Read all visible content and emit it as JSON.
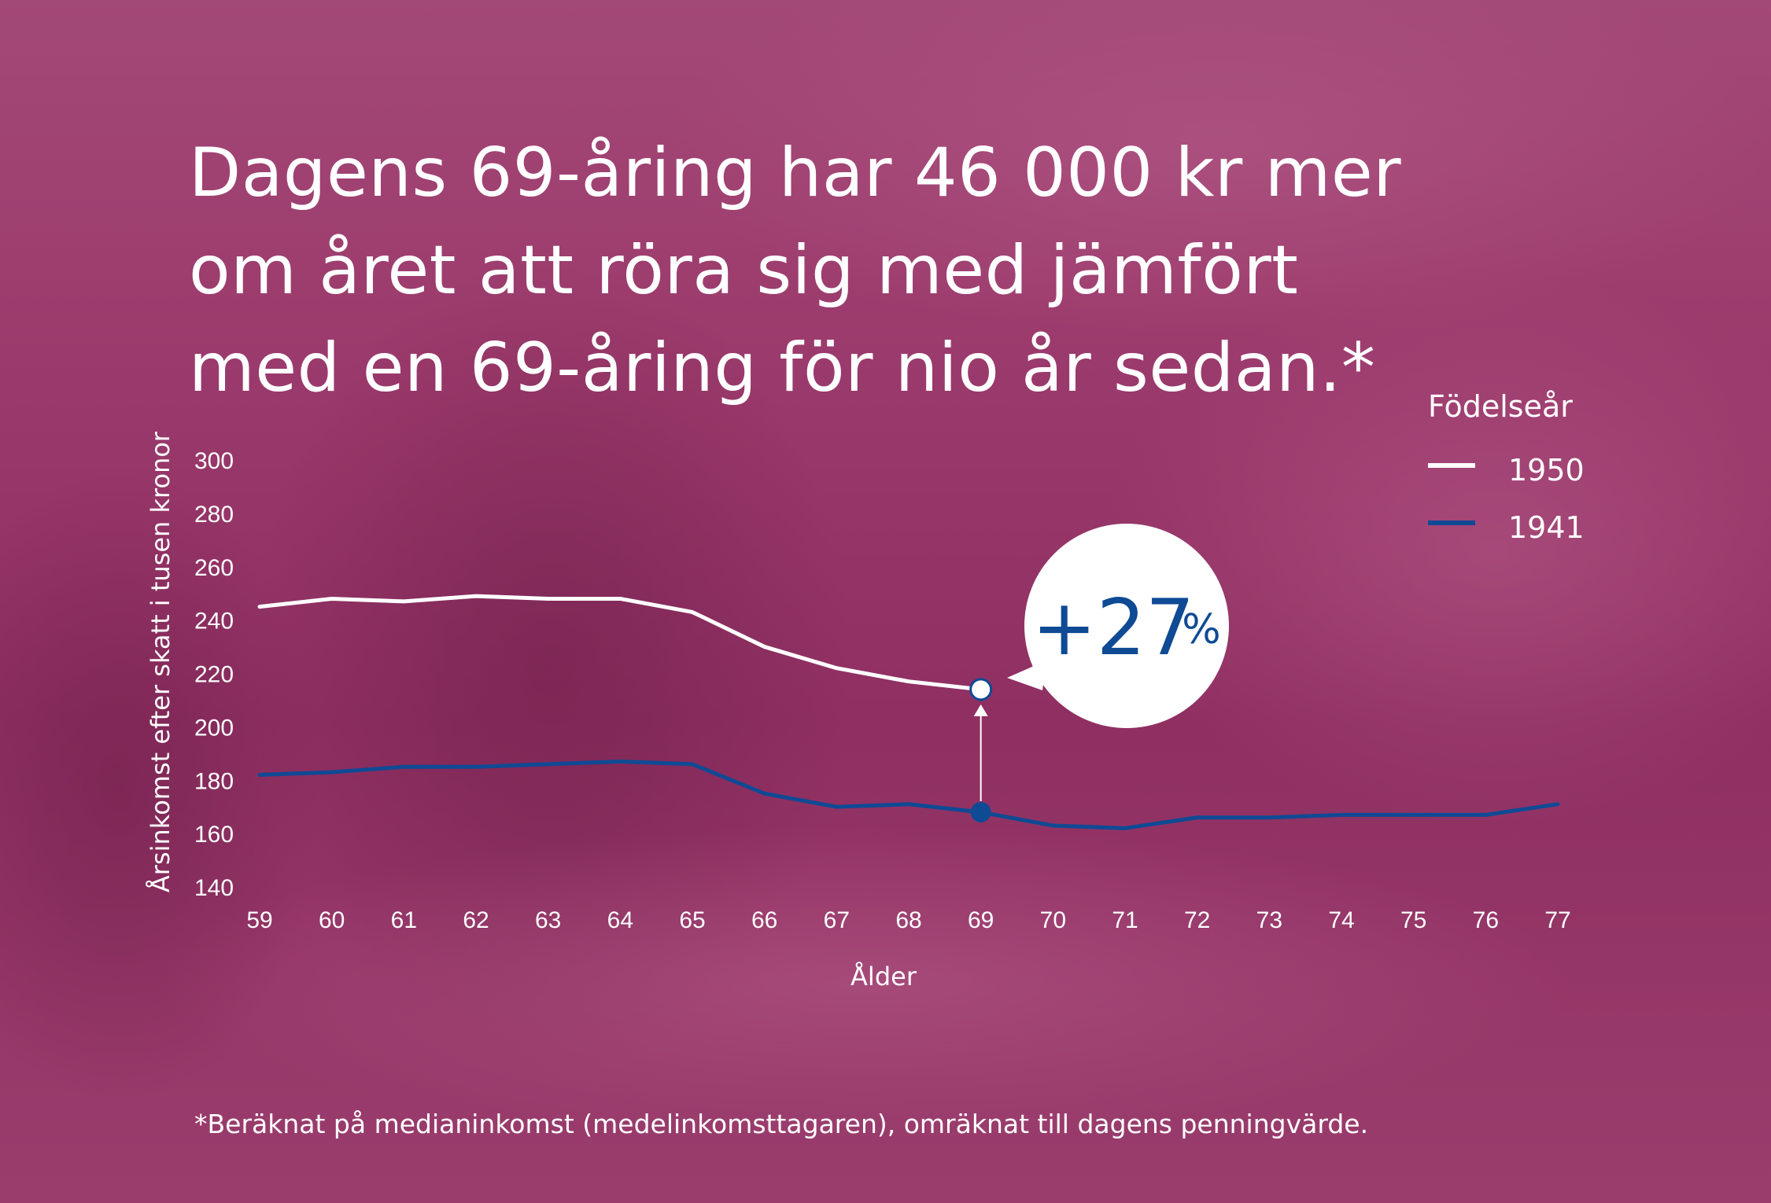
{
  "headline": {
    "line1": "Dagens 69-åring har 46 000 kr mer",
    "line2": "om året att röra sig med jämfört",
    "line3": "med en 69-åring för nio år sedan.*"
  },
  "footnote": "*Beräknat på medianinkomst (medelinkomsttagaren), omräknat till dagens penningvärde.",
  "colors": {
    "background": "#97366a",
    "series_1950": "#ffffff",
    "series_1941": "#0f4a94",
    "bubble_text": "#0f4a94"
  },
  "callout": {
    "value": "+27",
    "unit": "%"
  },
  "chart_data": {
    "type": "line",
    "xlabel": "Ålder",
    "ylabel": "Årsinkomst efter skatt i tusen kronor",
    "legend_title": "Födelseår",
    "legend_position": "top-right",
    "grid": false,
    "x": [
      59,
      60,
      61,
      62,
      63,
      64,
      65,
      66,
      67,
      68,
      69,
      70,
      71,
      72,
      73,
      74,
      75,
      76,
      77
    ],
    "ylim": [
      140,
      300
    ],
    "yticks": [
      140,
      160,
      180,
      200,
      220,
      240,
      260,
      280,
      300
    ],
    "series": [
      {
        "name": "1950",
        "x": [
          59,
          60,
          61,
          62,
          63,
          64,
          65,
          66,
          67,
          68,
          69
        ],
        "values": [
          245,
          248,
          247,
          249,
          248,
          248,
          243,
          230,
          222,
          217,
          214
        ]
      },
      {
        "name": "1941",
        "x": [
          59,
          60,
          61,
          62,
          63,
          64,
          65,
          66,
          67,
          68,
          69,
          70,
          71,
          72,
          73,
          74,
          75,
          76,
          77
        ],
        "values": [
          182,
          183,
          185,
          185,
          186,
          187,
          186,
          175,
          170,
          171,
          168,
          163,
          162,
          166,
          166,
          167,
          167,
          167,
          171
        ]
      }
    ],
    "highlight": {
      "x": 69,
      "from_series": "1941",
      "to_series": "1950",
      "label": "+27 %"
    }
  }
}
